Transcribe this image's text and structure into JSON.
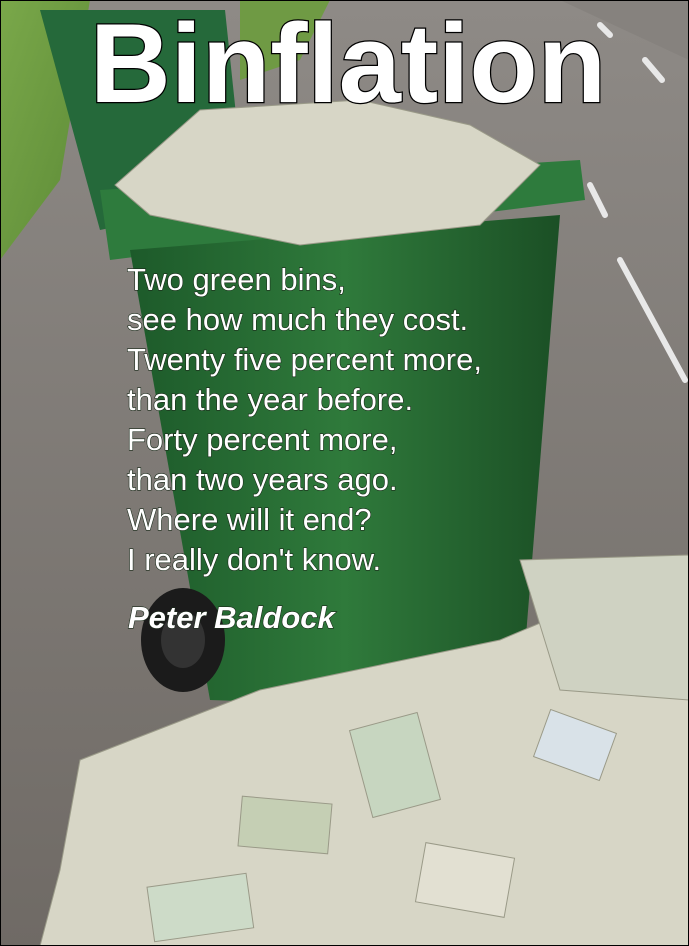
{
  "title": "Binflation",
  "poem": {
    "lines": [
      "Two green bins,",
      "see how much they cost.",
      "Twenty five percent more,",
      "than the year before.",
      "Forty percent more,",
      "than two years ago.",
      "Where will it end?",
      "I really don't know."
    ],
    "author": "Peter Baldock"
  }
}
